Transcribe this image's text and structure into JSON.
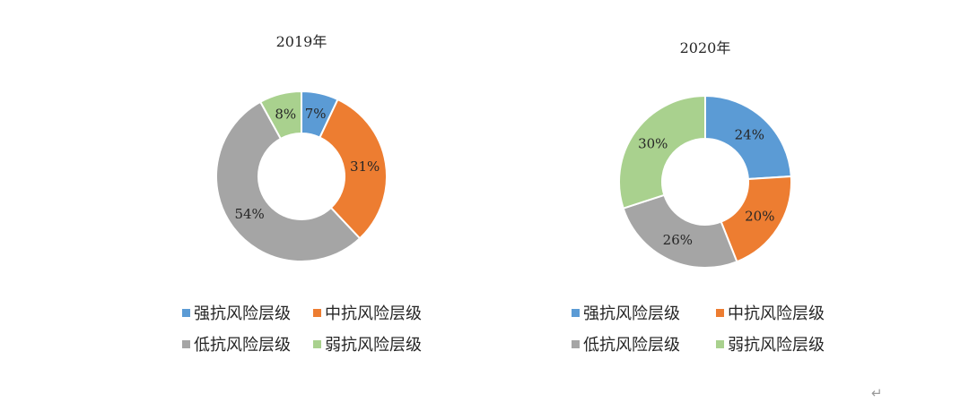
{
  "chart_data": [
    {
      "type": "pie",
      "title": "2019年",
      "categories": [
        "强抗风险层级",
        "中抗风险层级",
        "低抗风险层级",
        "弱抗风险层级"
      ],
      "values": [
        7,
        31,
        54,
        8
      ],
      "labels": [
        "7%",
        "31%",
        "54%",
        "8%"
      ],
      "colors": [
        "#5B9BD5",
        "#ED7D31",
        "#A5A5A5",
        "#A9D18E"
      ],
      "legend": "bottom"
    },
    {
      "type": "pie",
      "title": "2020年",
      "categories": [
        "强抗风险层级",
        "中抗风险层级",
        "低抗风险层级",
        "弱抗风险层级"
      ],
      "values": [
        24,
        20,
        26,
        30
      ],
      "labels": [
        "24%",
        "20%",
        "26%",
        "30%"
      ],
      "colors": [
        "#5B9BD5",
        "#ED7D31",
        "#A5A5A5",
        "#A9D18E"
      ],
      "legend": "bottom"
    }
  ],
  "paragraph_mark": "↵"
}
